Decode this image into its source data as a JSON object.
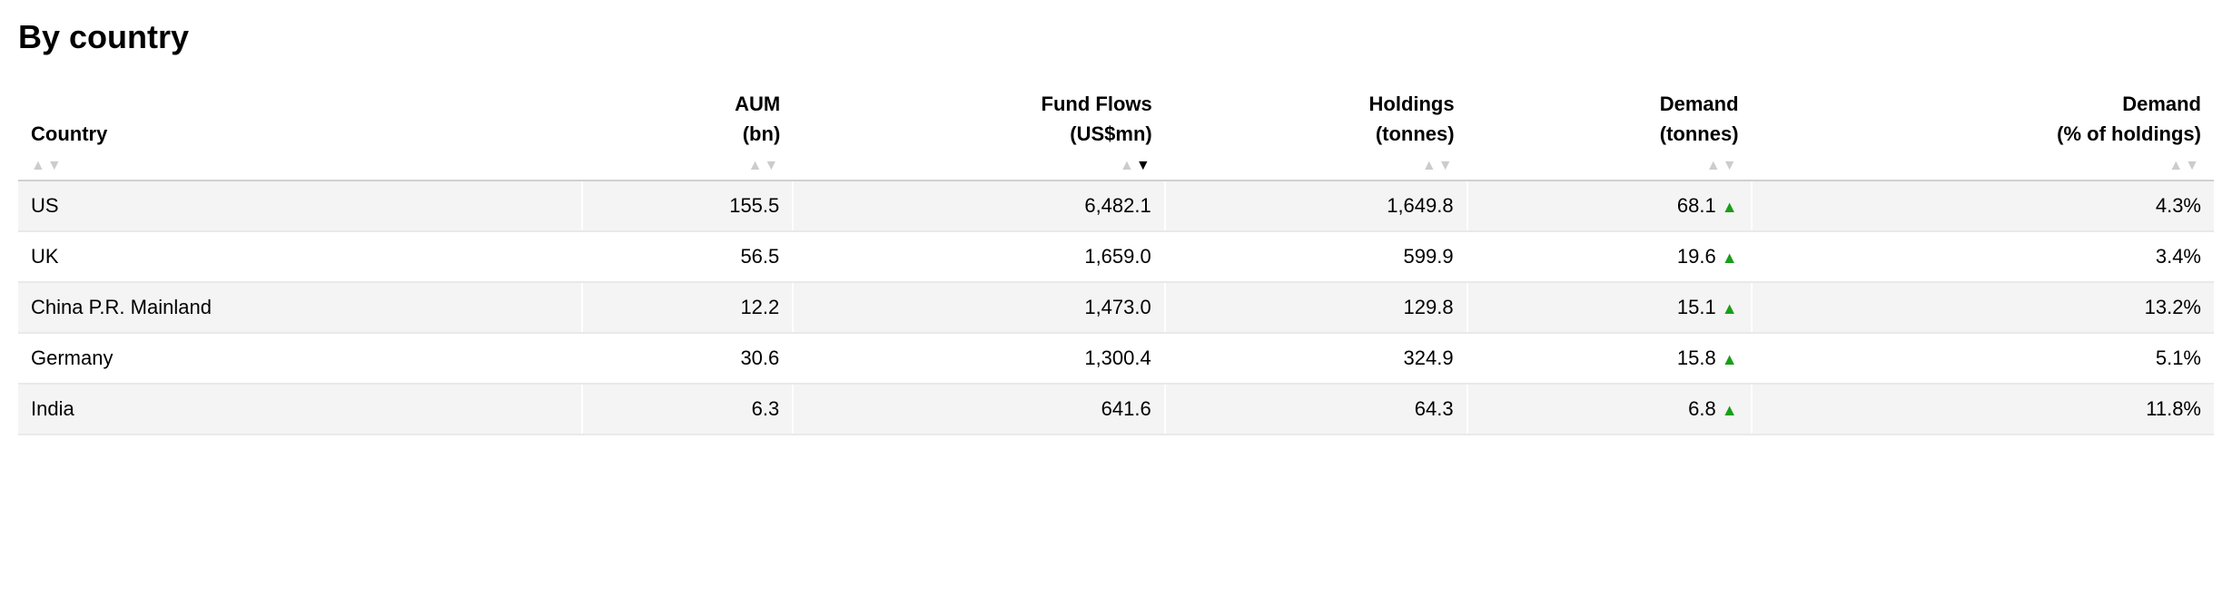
{
  "title": "By country",
  "colors": {
    "positive": "#1a9e1a",
    "row_alt_bg": "#f4f4f4",
    "border": "#e9e9e9",
    "header_border": "#d0d0d0",
    "sort_inactive": "#cccccc",
    "sort_active": "#000000",
    "text": "#000000",
    "background": "#ffffff"
  },
  "columns": [
    {
      "key": "country",
      "line1": "",
      "line2": "Country",
      "align": "left",
      "sort_active": null
    },
    {
      "key": "aum",
      "line1": "AUM",
      "line2": "(bn)",
      "align": "right",
      "sort_active": null
    },
    {
      "key": "flows",
      "line1": "Fund Flows",
      "line2": "(US$mn)",
      "align": "right",
      "sort_active": "desc"
    },
    {
      "key": "holdings",
      "line1": "Holdings",
      "line2": "(tonnes)",
      "align": "right",
      "sort_active": null
    },
    {
      "key": "demand_t",
      "line1": "Demand",
      "line2": "(tonnes)",
      "align": "right",
      "sort_active": null
    },
    {
      "key": "demand_pct",
      "line1": "Demand",
      "line2": "(% of holdings)",
      "align": "right",
      "sort_active": null
    }
  ],
  "rows": [
    {
      "country": "US",
      "aum": "155.5",
      "flows": "6,482.1",
      "holdings": "1,649.8",
      "demand_t": "68.1",
      "demand_trend": "up",
      "demand_pct": "4.3%",
      "pct_positive": true
    },
    {
      "country": "UK",
      "aum": "56.5",
      "flows": "1,659.0",
      "holdings": "599.9",
      "demand_t": "19.6",
      "demand_trend": "up",
      "demand_pct": "3.4%",
      "pct_positive": true
    },
    {
      "country": "China P.R. Mainland",
      "aum": "12.2",
      "flows": "1,473.0",
      "holdings": "129.8",
      "demand_t": "15.1",
      "demand_trend": "up",
      "demand_pct": "13.2%",
      "pct_positive": true
    },
    {
      "country": "Germany",
      "aum": "30.6",
      "flows": "1,300.4",
      "holdings": "324.9",
      "demand_t": "15.8",
      "demand_trend": "up",
      "demand_pct": "5.1%",
      "pct_positive": true
    },
    {
      "country": "India",
      "aum": "6.3",
      "flows": "641.6",
      "holdings": "64.3",
      "demand_t": "6.8",
      "demand_trend": "up",
      "demand_pct": "11.8%",
      "pct_positive": true
    }
  ]
}
